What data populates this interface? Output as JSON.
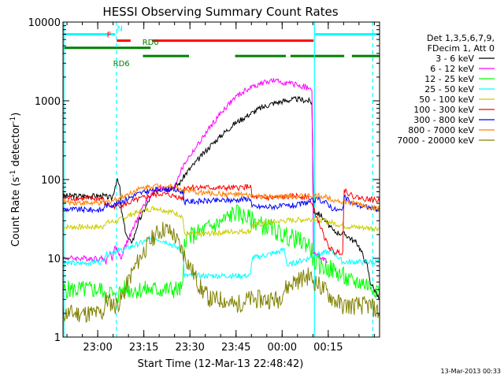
{
  "chart_data": {
    "type": "line",
    "title": "HESSI Observing Summary Count Rates",
    "xlabel": "Start Time (12-Mar-13 22:48:42)",
    "ylabel": "Count Rate (s⁻¹ detector⁻¹)",
    "ylabel_parts": [
      "Count Rate (s",
      "-1",
      " detector",
      "-1",
      ")"
    ],
    "yscale": "log",
    "ylim": [
      1,
      10000
    ],
    "xlim": [
      0,
      103
    ],
    "x_units": "minutes after 22:48:42",
    "grid": false,
    "legend_position": "right",
    "x_ticks": [
      {
        "x": 11.3,
        "label": "23:00"
      },
      {
        "x": 26.3,
        "label": "23:15"
      },
      {
        "x": 41.3,
        "label": "23:30"
      },
      {
        "x": 56.3,
        "label": "23:45"
      },
      {
        "x": 71.3,
        "label": "00:00"
      },
      {
        "x": 86.3,
        "label": "00:15"
      }
    ],
    "y_ticks": [
      {
        "y": 1,
        "label": "1"
      },
      {
        "y": 10,
        "label": "10"
      },
      {
        "y": 100,
        "label": "100"
      },
      {
        "y": 1000,
        "label": "1000"
      },
      {
        "y": 10000,
        "label": "10000"
      }
    ],
    "legend_header": [
      "Det 1,3,5,6,7,9,",
      "FDecim 1, Att 0"
    ],
    "series": [
      {
        "name": "3 - 6 keV",
        "color": "#000000",
        "points": [
          [
            0,
            62
          ],
          [
            13,
            62
          ],
          [
            16,
            58
          ],
          [
            17.5,
            100
          ],
          [
            18.5,
            80
          ],
          [
            19,
            40
          ],
          [
            20,
            25
          ],
          [
            21,
            18
          ],
          [
            22,
            16
          ],
          [
            23,
            18
          ],
          [
            24,
            25
          ],
          [
            26,
            38
          ],
          [
            28,
            55
          ],
          [
            30,
            70
          ],
          [
            32,
            80
          ],
          [
            34,
            78
          ],
          [
            36,
            80
          ],
          [
            38,
            90
          ],
          [
            40,
            120
          ],
          [
            44,
            180
          ],
          [
            48,
            270
          ],
          [
            52,
            380
          ],
          [
            56,
            520
          ],
          [
            60,
            650
          ],
          [
            64,
            800
          ],
          [
            68,
            920
          ],
          [
            72,
            1000
          ],
          [
            76,
            1050
          ],
          [
            80,
            1000
          ],
          [
            81,
            950
          ],
          [
            81.5,
            40
          ],
          [
            84,
            35
          ],
          [
            88,
            22
          ],
          [
            92,
            20
          ],
          [
            96,
            15
          ],
          [
            98,
            10
          ],
          [
            99,
            8
          ],
          [
            100,
            5
          ],
          [
            103,
            3
          ]
        ]
      },
      {
        "name": "6 - 12 keV",
        "color": "#ff00ff",
        "points": [
          [
            0,
            10
          ],
          [
            13,
            10
          ],
          [
            14,
            9
          ],
          [
            15,
            12
          ],
          [
            16,
            10
          ],
          [
            17,
            14
          ],
          [
            18,
            12
          ],
          [
            19,
            10
          ],
          [
            20,
            14
          ],
          [
            22,
            20
          ],
          [
            24,
            30
          ],
          [
            26,
            45
          ],
          [
            28,
            60
          ],
          [
            30,
            75
          ],
          [
            32,
            80
          ],
          [
            34,
            70
          ],
          [
            36,
            80
          ],
          [
            38,
            120
          ],
          [
            40,
            170
          ],
          [
            44,
            280
          ],
          [
            48,
            470
          ],
          [
            52,
            750
          ],
          [
            56,
            1100
          ],
          [
            60,
            1400
          ],
          [
            64,
            1650
          ],
          [
            68,
            1800
          ],
          [
            72,
            1700
          ],
          [
            76,
            1600
          ],
          [
            80,
            1450
          ],
          [
            81,
            1300
          ],
          [
            81.5,
            12
          ],
          [
            84,
            10
          ],
          [
            86,
            9
          ]
        ]
      },
      {
        "name": "12 - 25 keV",
        "color": "#00ff00",
        "points": [
          [
            0,
            4
          ],
          [
            13,
            4
          ],
          [
            13.5,
            3
          ],
          [
            15,
            4
          ],
          [
            17,
            3
          ],
          [
            19,
            4
          ],
          [
            21,
            4
          ],
          [
            25,
            4
          ],
          [
            28,
            4
          ],
          [
            32,
            4
          ],
          [
            36,
            4
          ],
          [
            39,
            4
          ],
          [
            39.5,
            18
          ],
          [
            43,
            20
          ],
          [
            47,
            24
          ],
          [
            51,
            28
          ],
          [
            54,
            34
          ],
          [
            56,
            38
          ],
          [
            59,
            34
          ],
          [
            62,
            30
          ],
          [
            65,
            26
          ],
          [
            68,
            24
          ],
          [
            71,
            20
          ],
          [
            75,
            18
          ],
          [
            78,
            16
          ],
          [
            80,
            15
          ],
          [
            81,
            12
          ],
          [
            81.5,
            9
          ],
          [
            84,
            8
          ],
          [
            88,
            7
          ],
          [
            91,
            6
          ],
          [
            93,
            5
          ],
          [
            97,
            5
          ],
          [
            103,
            4
          ]
        ]
      },
      {
        "name": "25 - 50 keV",
        "color": "#00ffff",
        "points": [
          [
            0,
            9
          ],
          [
            5,
            8.5
          ],
          [
            10,
            9
          ],
          [
            13,
            9
          ],
          [
            13.5,
            11
          ],
          [
            16,
            12
          ],
          [
            20,
            13
          ],
          [
            24,
            15
          ],
          [
            28,
            17
          ],
          [
            30,
            18
          ],
          [
            34,
            16
          ],
          [
            38,
            13
          ],
          [
            39,
            12
          ],
          [
            39.5,
            6
          ],
          [
            44,
            6
          ],
          [
            50,
            6
          ],
          [
            54,
            6
          ],
          [
            58,
            6
          ],
          [
            61,
            6
          ],
          [
            61.5,
            10
          ],
          [
            66,
            11
          ],
          [
            70,
            12
          ],
          [
            72,
            13
          ],
          [
            73,
            8
          ],
          [
            76,
            9
          ],
          [
            80,
            10
          ],
          [
            82,
            11
          ],
          [
            86,
            12
          ],
          [
            88,
            12
          ],
          [
            91,
            9
          ],
          [
            95,
            9
          ],
          [
            103,
            9
          ]
        ]
      },
      {
        "name": "50 - 100 keV",
        "color": "#cccc00",
        "points": [
          [
            0,
            25
          ],
          [
            13,
            25
          ],
          [
            13.5,
            28
          ],
          [
            18,
            30
          ],
          [
            22,
            36
          ],
          [
            26,
            40
          ],
          [
            30,
            44
          ],
          [
            34,
            40
          ],
          [
            38,
            36
          ],
          [
            39,
            33
          ],
          [
            39.5,
            20
          ],
          [
            44,
            20
          ],
          [
            50,
            21
          ],
          [
            56,
            22
          ],
          [
            61,
            22
          ],
          [
            61.5,
            26
          ],
          [
            66,
            28
          ],
          [
            72,
            30
          ],
          [
            78,
            31
          ],
          [
            82,
            32
          ],
          [
            85,
            30
          ],
          [
            88,
            28
          ],
          [
            91,
            26
          ],
          [
            94,
            25
          ],
          [
            103,
            24
          ]
        ]
      },
      {
        "name": "100 - 300 keV",
        "color": "#ff0000",
        "points": [
          [
            0,
            58
          ],
          [
            13,
            57
          ],
          [
            13.5,
            50
          ],
          [
            16,
            45
          ],
          [
            20,
            48
          ],
          [
            24,
            55
          ],
          [
            28,
            62
          ],
          [
            32,
            66
          ],
          [
            36,
            62
          ],
          [
            39,
            58
          ],
          [
            39.5,
            80
          ],
          [
            44,
            80
          ],
          [
            50,
            78
          ],
          [
            56,
            78
          ],
          [
            61,
            82
          ],
          [
            61.5,
            60
          ],
          [
            66,
            58
          ],
          [
            72,
            60
          ],
          [
            76,
            62
          ],
          [
            80,
            60
          ],
          [
            83,
            30
          ],
          [
            86,
            15
          ],
          [
            88,
            12
          ],
          [
            91,
            12
          ],
          [
            91.5,
            75
          ],
          [
            94,
            62
          ],
          [
            97,
            58
          ],
          [
            100,
            56
          ],
          [
            103,
            54
          ]
        ]
      },
      {
        "name": "300 - 800 keV",
        "color": "#0000ff",
        "points": [
          [
            0,
            42
          ],
          [
            13,
            41
          ],
          [
            13.5,
            47
          ],
          [
            17,
            48
          ],
          [
            20,
            55
          ],
          [
            24,
            65
          ],
          [
            28,
            72
          ],
          [
            32,
            76
          ],
          [
            36,
            74
          ],
          [
            39,
            70
          ],
          [
            39.5,
            52
          ],
          [
            44,
            53
          ],
          [
            50,
            54
          ],
          [
            56,
            55
          ],
          [
            61,
            58
          ],
          [
            61.5,
            45
          ],
          [
            66,
            45
          ],
          [
            72,
            46
          ],
          [
            76,
            47
          ],
          [
            80,
            52
          ],
          [
            83,
            56
          ],
          [
            86,
            50
          ],
          [
            88,
            42
          ],
          [
            91,
            40
          ],
          [
            91.5,
            60
          ],
          [
            94,
            50
          ],
          [
            97,
            46
          ],
          [
            100,
            44
          ],
          [
            103,
            42
          ]
        ]
      },
      {
        "name": "800 - 7000 keV",
        "color": "#ff8000",
        "points": [
          [
            0,
            52
          ],
          [
            10,
            50
          ],
          [
            13,
            50
          ],
          [
            16,
            54
          ],
          [
            20,
            62
          ],
          [
            24,
            74
          ],
          [
            28,
            82
          ],
          [
            32,
            84
          ],
          [
            36,
            80
          ],
          [
            39,
            74
          ],
          [
            42,
            70
          ],
          [
            46,
            68
          ],
          [
            50,
            66
          ],
          [
            54,
            65
          ],
          [
            58,
            64
          ],
          [
            61,
            62
          ],
          [
            65,
            60
          ],
          [
            70,
            60
          ],
          [
            75,
            61
          ],
          [
            80,
            62
          ],
          [
            83,
            62
          ],
          [
            86,
            60
          ],
          [
            88,
            56
          ],
          [
            91,
            52
          ],
          [
            94,
            50
          ],
          [
            97,
            48
          ],
          [
            100,
            45
          ],
          [
            103,
            42
          ]
        ]
      },
      {
        "name": "7000 - 20000 keV",
        "color": "#808000",
        "points": [
          [
            0,
            2
          ],
          [
            5,
            2
          ],
          [
            10,
            2
          ],
          [
            13,
            2
          ],
          [
            14,
            3
          ],
          [
            17,
            2.5
          ],
          [
            19,
            3
          ],
          [
            22,
            6
          ],
          [
            26,
            12
          ],
          [
            30,
            20
          ],
          [
            33,
            24
          ],
          [
            36,
            20
          ],
          [
            39,
            12
          ],
          [
            42,
            7
          ],
          [
            45,
            4
          ],
          [
            48,
            3
          ],
          [
            52,
            3
          ],
          [
            56,
            2.5
          ],
          [
            60,
            3
          ],
          [
            63,
            3
          ],
          [
            66,
            3
          ],
          [
            70,
            3
          ],
          [
            72,
            4
          ],
          [
            75,
            5
          ],
          [
            80,
            6
          ],
          [
            82,
            5
          ],
          [
            85,
            4
          ],
          [
            88,
            3
          ],
          [
            91,
            2.5
          ],
          [
            95,
            2.5
          ],
          [
            100,
            2.5
          ],
          [
            103,
            2
          ]
        ]
      }
    ],
    "state_flags": [
      {
        "label": "N",
        "color": "#00ffff",
        "segments": [
          [
            0,
            17
          ],
          [
            82,
            103
          ]
        ],
        "level": 7000,
        "label_x": 18.5
      },
      {
        "label": "F",
        "color": "#ff0000",
        "segments": [
          [
            17.5,
            22
          ],
          [
            29,
            81.5
          ]
        ],
        "level": 5800,
        "label_x": 15
      },
      {
        "label": "RD0",
        "color": "#008000",
        "segments": [
          [
            0,
            28.5
          ]
        ],
        "level": 4700,
        "label_x": 28.5
      },
      {
        "label": "RD6",
        "color": "#008000",
        "segments": [
          [
            26,
            41
          ],
          [
            56,
            72.5
          ],
          [
            74,
            91.5
          ],
          [
            94,
            103
          ]
        ],
        "level": 3700,
        "label_x": 19
      }
    ],
    "vertical_markers": [
      {
        "x": 17.4,
        "style": "dashed",
        "color": "#00ffff"
      },
      {
        "x": 81.8,
        "style": "solid",
        "color": "#00ffff"
      },
      {
        "x": 100.8,
        "style": "dashed",
        "color": "#00ffff"
      },
      {
        "x": 0.3,
        "style": "solid",
        "color": "#00ffff"
      }
    ]
  },
  "footer": {
    "timestamp": "13-Mar-2013 00:33"
  }
}
